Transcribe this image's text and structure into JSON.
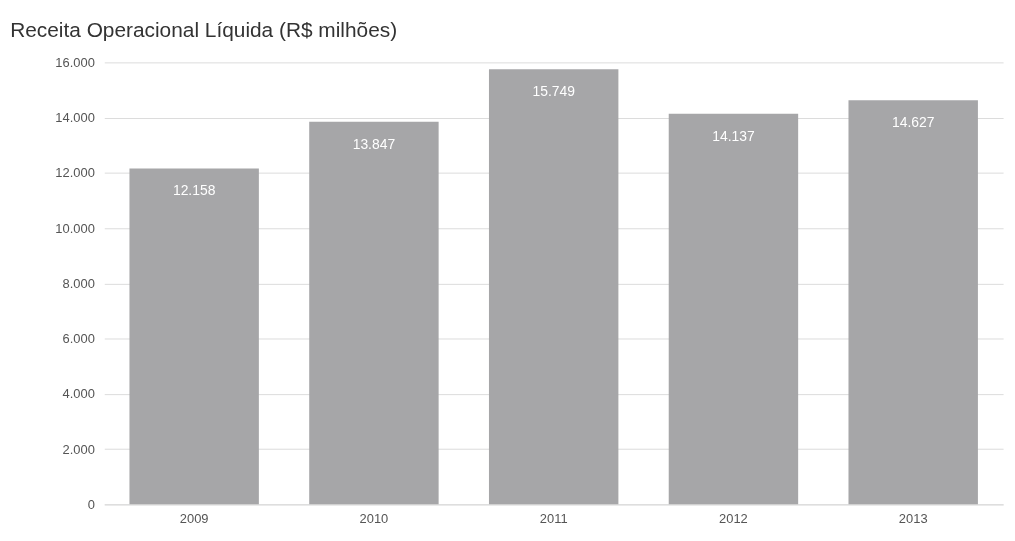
{
  "chart_data": {
    "type": "bar",
    "title": "Receita Operacional Líquida (R$ milhões)",
    "categories": [
      "2009",
      "2010",
      "2011",
      "2012",
      "2013"
    ],
    "values": [
      12158,
      13847,
      15749,
      14137,
      14627
    ],
    "value_labels": [
      "12.158",
      "13.847",
      "15.749",
      "14.137",
      "14.627"
    ],
    "color": "#a6a6a8",
    "ylim": [
      0,
      16000
    ],
    "yticks": [
      {
        "value": 0,
        "label": "0"
      },
      {
        "value": 2000,
        "label": "2.000"
      },
      {
        "value": 4000,
        "label": "4.000"
      },
      {
        "value": 6000,
        "label": "6.000"
      },
      {
        "value": 8000,
        "label": "8.000"
      },
      {
        "value": 10000,
        "label": "10.000"
      },
      {
        "value": 12000,
        "label": "12.000"
      },
      {
        "value": 14000,
        "label": "14.000"
      },
      {
        "value": 16000,
        "label": "16.000"
      }
    ],
    "grid": "y"
  }
}
